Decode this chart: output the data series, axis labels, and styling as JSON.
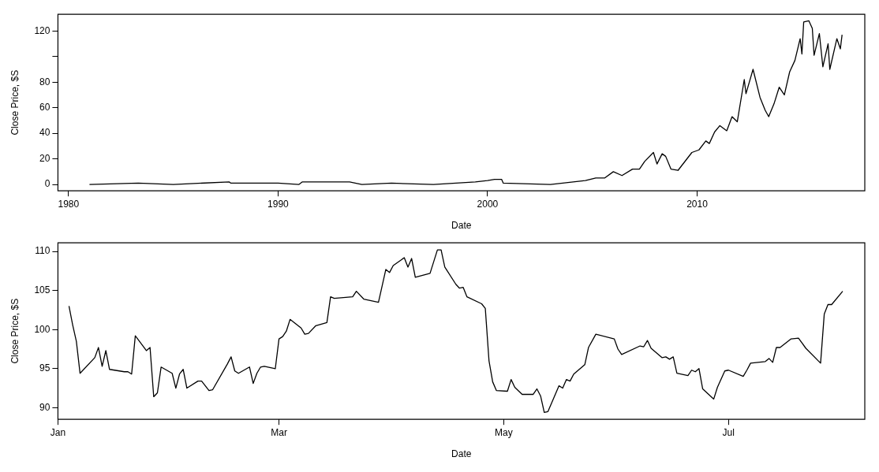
{
  "chart_data": [
    {
      "type": "line",
      "xlabel": "Date",
      "ylabel": "Close Price, $S",
      "color": "#000000",
      "x": [
        "1981-01",
        "1983-05",
        "1985-01",
        "1987-09",
        "1987-10",
        "1990-01",
        "1991-01",
        "1991-03",
        "1992-06",
        "1993-06",
        "1994-01",
        "1995-06",
        "1997-06",
        "1999-06",
        "2000-01",
        "2000-05",
        "2000-09",
        "2000-10",
        "2003-01",
        "2004-09",
        "2005-03",
        "2005-08",
        "2006-01",
        "2006-06",
        "2006-12",
        "2007-04",
        "2007-07",
        "2007-12",
        "2008-02",
        "2008-05",
        "2008-07",
        "2008-10",
        "2009-02",
        "2009-10",
        "2010-02",
        "2010-06",
        "2010-08",
        "2010-11",
        "2011-02",
        "2011-06",
        "2011-09",
        "2011-12",
        "2012-04",
        "2012-05",
        "2012-09",
        "2013-01",
        "2013-04",
        "2013-06",
        "2013-09",
        "2013-12",
        "2014-03",
        "2014-06",
        "2014-09",
        "2014-12",
        "2015-01",
        "2015-02",
        "2015-05",
        "2015-07",
        "2015-08",
        "2015-11",
        "2016-01",
        "2016-04",
        "2016-05",
        "2016-09",
        "2016-11",
        "2016-12"
      ],
      "values": [
        0,
        1,
        0,
        2,
        1,
        1,
        0,
        2,
        2,
        2,
        0,
        1,
        0,
        2,
        3,
        4,
        4,
        1,
        0,
        3,
        5,
        5,
        10,
        7,
        12,
        12,
        18,
        25,
        16,
        24,
        22,
        12,
        11,
        25,
        27,
        34,
        32,
        41,
        46,
        42,
        53,
        49,
        82,
        71,
        90,
        68,
        58,
        53,
        63,
        76,
        70,
        88,
        97,
        114,
        102,
        127,
        128,
        122,
        101,
        118,
        92,
        110,
        90,
        114,
        106,
        117
      ],
      "xlim": [
        "1979-07",
        "2018-01"
      ],
      "xticks": [
        "1980",
        "1990",
        "2000",
        "2010"
      ],
      "ylim": [
        -5,
        133
      ],
      "yticks": [
        0,
        20,
        40,
        60,
        80,
        {
          "value": 100,
          "label": null
        },
        120
      ]
    },
    {
      "type": "line",
      "xlabel": "Date",
      "ylabel": "Close Price, $S",
      "color": "#000000",
      "x": [
        "--01-04",
        "--01-05",
        "--01-06",
        "--01-07",
        "--01-11",
        "--01-12",
        "--01-13",
        "--01-14",
        "--01-15",
        "--01-19",
        "--01-20",
        "--01-21",
        "--01-22",
        "--01-25",
        "--01-26",
        "--01-27",
        "--01-28",
        "--01-29",
        "--02-01",
        "--02-02",
        "--02-03",
        "--02-04",
        "--02-05",
        "--02-08",
        "--02-09",
        "--02-11",
        "--02-12",
        "--02-16",
        "--02-17",
        "--02-18",
        "--02-19",
        "--02-22",
        "--02-23",
        "--02-24",
        "--02-25",
        "--02-26",
        "--02-29",
        "--03-01",
        "--03-02",
        "--03-03",
        "--03-04",
        "--03-07",
        "--03-08",
        "--03-09",
        "--03-11",
        "--03-14",
        "--03-15",
        "--03-16",
        "--03-21",
        "--03-22",
        "--03-24",
        "--03-28",
        "--03-30",
        "--03-31",
        "--04-01",
        "--04-04",
        "--04-05",
        "--04-06",
        "--04-07",
        "--04-11",
        "--04-13",
        "--04-14",
        "--04-15",
        "--04-18",
        "--04-19",
        "--04-20",
        "--04-21",
        "--04-25",
        "--04-26",
        "--04-27",
        "--04-28",
        "--04-29",
        "--05-02",
        "--05-03",
        "--05-04",
        "--05-06",
        "--05-09",
        "--05-10",
        "--05-11",
        "--05-12",
        "--05-13",
        "--05-16",
        "--05-17",
        "--05-18",
        "--05-19",
        "--05-20",
        "--05-23",
        "--05-24",
        "--05-26",
        "--05-31",
        "--06-01",
        "--06-02",
        "--06-07",
        "--06-08",
        "--06-09",
        "--06-10",
        "--06-13",
        "--06-14",
        "--06-15",
        "--06-16",
        "--06-17",
        "--06-20",
        "--06-21",
        "--06-22",
        "--06-23",
        "--06-24",
        "--06-27",
        "--06-28",
        "--06-30",
        "--07-01",
        "--07-05",
        "--07-06",
        "--07-07",
        "--07-11",
        "--07-12",
        "--07-13",
        "--07-14",
        "--07-15",
        "--07-18",
        "--07-20",
        "--07-22",
        "--07-26",
        "--07-27",
        "--07-28",
        "--07-29",
        "--08-01"
      ],
      "values": [
        103.0,
        100.6,
        98.5,
        94.4,
        96.4,
        97.7,
        95.3,
        97.3,
        94.9,
        94.6,
        94.6,
        94.3,
        99.2,
        97.3,
        97.7,
        91.4,
        91.9,
        95.2,
        94.4,
        92.5,
        94.3,
        94.9,
        92.5,
        93.4,
        93.4,
        92.2,
        92.3,
        95.6,
        96.5,
        94.7,
        94.4,
        95.2,
        93.1,
        94.4,
        95.2,
        95.3,
        95.0,
        98.8,
        99.1,
        99.8,
        101.3,
        100.2,
        99.4,
        99.5,
        100.5,
        100.9,
        104.2,
        104.0,
        104.2,
        104.9,
        103.9,
        103.5,
        107.7,
        107.3,
        108.2,
        109.2,
        108.0,
        109.1,
        106.7,
        107.2,
        110.2,
        110.2,
        108.0,
        105.8,
        105.3,
        105.4,
        104.2,
        103.3,
        102.7,
        96.0,
        93.3,
        92.2,
        92.1,
        93.6,
        92.6,
        91.7,
        91.7,
        92.4,
        91.5,
        89.4,
        89.5,
        92.8,
        92.5,
        93.6,
        93.4,
        94.3,
        95.5,
        97.7,
        99.4,
        98.8,
        97.5,
        96.8,
        97.9,
        97.8,
        98.6,
        97.6,
        96.4,
        96.5,
        96.2,
        96.5,
        94.4,
        94.1,
        94.8,
        94.6,
        95.0,
        92.4,
        91.1,
        92.6,
        94.7,
        94.8,
        94.0,
        94.8,
        95.7,
        95.9,
        96.3,
        95.8,
        97.7,
        97.7,
        98.8,
        98.9,
        97.6,
        95.7,
        102.0,
        103.2,
        103.2,
        104.9
      ],
      "xlim": [
        "--01-01",
        "--08-07"
      ],
      "xticks": [
        {
          "value": "--01-01",
          "label": "Jan"
        },
        {
          "value": "--03-01",
          "label": "Mar"
        },
        {
          "value": "--05-01",
          "label": "May"
        },
        {
          "value": "--07-01",
          "label": "Jul"
        }
      ],
      "ylim": [
        88.5,
        111.1
      ],
      "yticks": [
        90,
        95,
        100,
        105,
        110
      ]
    }
  ]
}
